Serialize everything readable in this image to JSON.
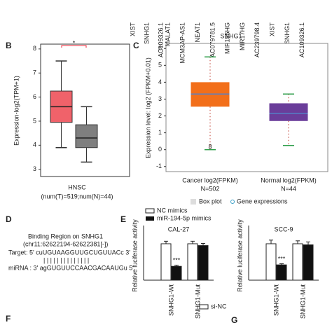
{
  "gene_labels_left": [
    "XIST",
    "SNHG1",
    "AC109326.1"
  ],
  "gene_labels_right": [
    "MALAT1",
    "MCM3AP-AS1",
    "NEAT1",
    "AC079781.5",
    "MIR155HG",
    "MIR17HG",
    "AC239798.4",
    "XIST",
    "SNHG1",
    "AC109326.1"
  ],
  "panel_b": {
    "label": "B",
    "ylabel": "Expression-log2(TPM+1)",
    "ylim": [
      2.7,
      8.2
    ],
    "yticks": [
      3,
      4,
      5,
      6,
      7,
      8
    ],
    "boxes": [
      {
        "color": "#f0626a",
        "min": 3.9,
        "q1": 4.95,
        "median": 5.6,
        "q3": 6.25,
        "max": 7.5
      },
      {
        "color": "#7f7f7f",
        "min": 3.3,
        "q1": 3.9,
        "median": 4.3,
        "q3": 4.85,
        "max": 5.6
      }
    ],
    "significance": "*",
    "xlabel": "HNSC",
    "xsublabel": "(num(T)=519;num(N)=44)"
  },
  "panel_c": {
    "label": "C",
    "title": "SNHG1",
    "ylabel": "Expression level: log2 (FPKM+0.01)",
    "ylim": [
      -1.3,
      6.3
    ],
    "yticks": [
      -1,
      0,
      1,
      2,
      3,
      4,
      5,
      6
    ],
    "boxes": [
      {
        "name": "Cancer log2(FPKM)",
        "n": "N=502",
        "color": "#f26f1a",
        "min": 0,
        "q1": 2.55,
        "median": 3.3,
        "q3": 4.0,
        "max": 5.5
      },
      {
        "name": "Normal log2(FPKM)",
        "n": "N=44",
        "color": "#6a3d9a",
        "min": 0.25,
        "q1": 1.7,
        "median": 2.15,
        "q3": 2.75,
        "max": 3.3
      }
    ],
    "outlier_label": "8",
    "legend": [
      "Box plot",
      "Gene expressions"
    ]
  },
  "panel_d": {
    "label": "D",
    "title": "Binding Region on SNHG1",
    "region": "(chr11:62622194-62622381[-])",
    "target": "Target: 5' cuUGUAAGGUUGCUGUUACc 3'",
    "pairs": "| |  | | | |   | |  | | | | | |",
    "mirna": "miRNA : 3' agGUGUUCCAACGACAAUGu 5'"
  },
  "panel_e": {
    "label": "E",
    "legend": [
      "NC mimics",
      "miR-194-5p mimics"
    ],
    "ylabel": "Relative luciferase activity",
    "ylim": [
      0,
      1.5
    ],
    "categories": [
      "SNHG1-Wt",
      "SNHG1-Mut"
    ],
    "significance": "***",
    "charts": [
      {
        "title": "CAL-27",
        "values": [
          1.0,
          0.38,
          1.0,
          0.95
        ],
        "errors": [
          0.07,
          0.03,
          0.07,
          0.06
        ]
      },
      {
        "title": "SCC-9",
        "values": [
          1.0,
          0.42,
          1.0,
          0.97
        ],
        "errors": [
          0.1,
          0.03,
          0.08,
          0.08
        ]
      }
    ]
  },
  "panel_f": {
    "label": "F",
    "legend": "si-NC"
  },
  "panel_g": {
    "label": "G"
  }
}
